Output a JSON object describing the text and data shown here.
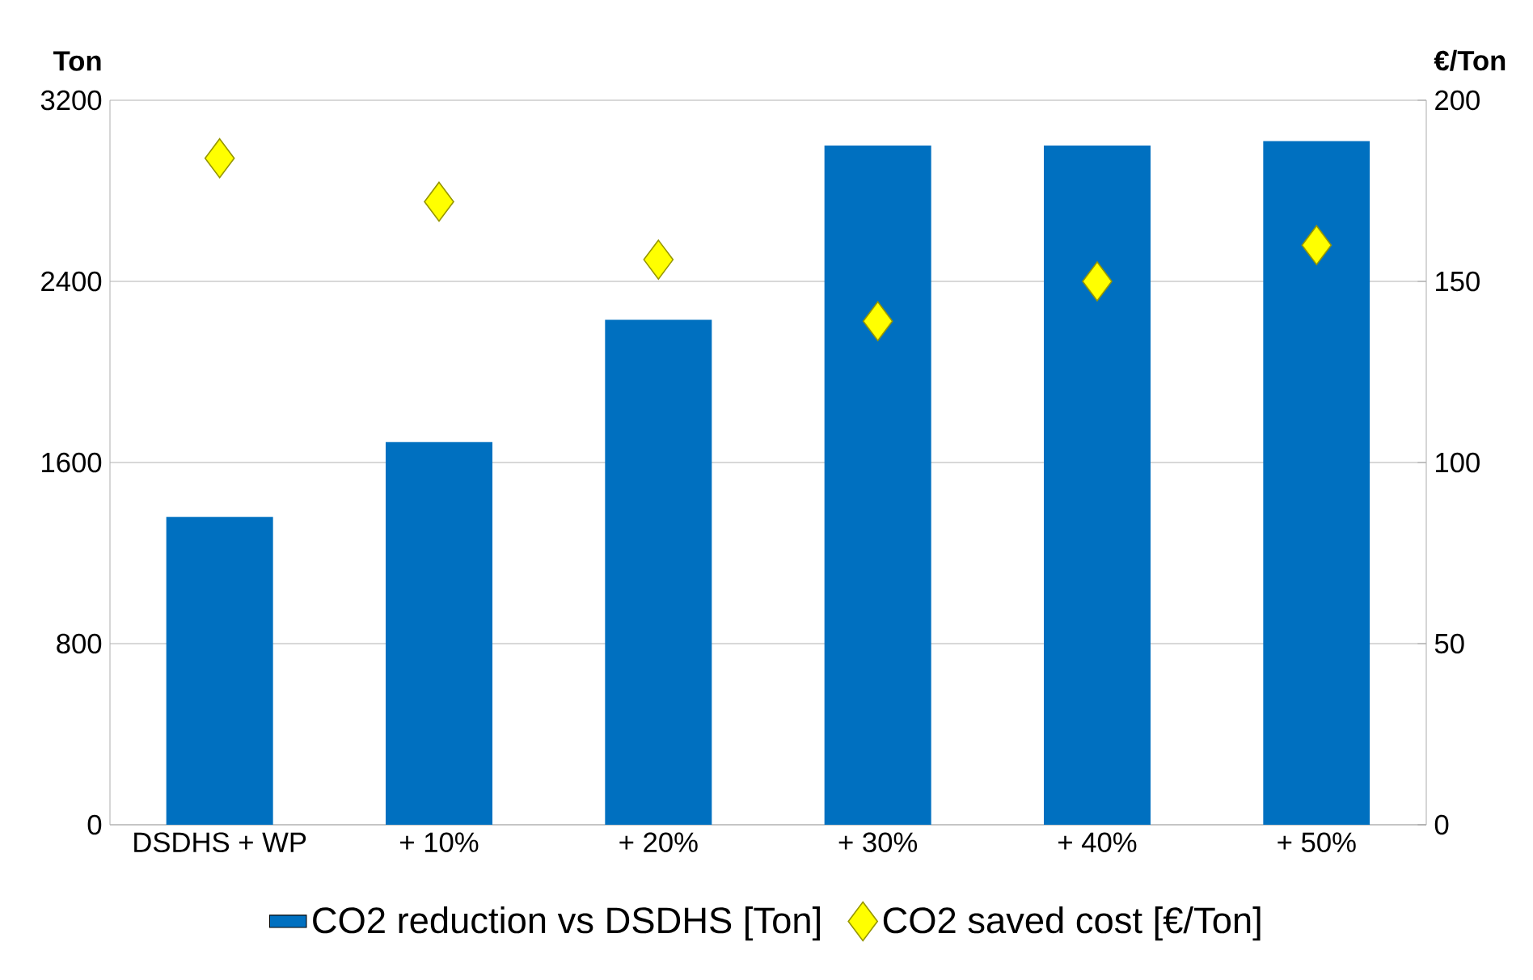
{
  "chart_data": {
    "type": "bar",
    "categories": [
      "DSDHS + WP",
      "+ 10%",
      "+ 20%",
      "+ 30%",
      "+ 40%",
      "+ 50%"
    ],
    "ylabel": "Ton",
    "y2label": "€/Ton",
    "ylim": [
      0,
      3200
    ],
    "yticks": [
      0,
      800,
      1600,
      2400,
      3200
    ],
    "y2lim": [
      0,
      200
    ],
    "y2ticks": [
      0,
      50,
      100,
      150,
      200
    ],
    "grid": "y",
    "legend": "bottom",
    "series": [
      {
        "name": "CO2 reduction vs DSDHS [Ton]",
        "color": "#0070c0",
        "values": [
          1360,
          1690,
          2230,
          3000,
          3000,
          3020
        ]
      },
      {
        "name": "CO2 saved cost [€/Ton]",
        "type": "scatter",
        "axis": "y2",
        "marker": "diamond",
        "color": "#ffff00",
        "values": [
          184,
          172,
          156,
          139,
          150,
          160
        ]
      }
    ]
  }
}
